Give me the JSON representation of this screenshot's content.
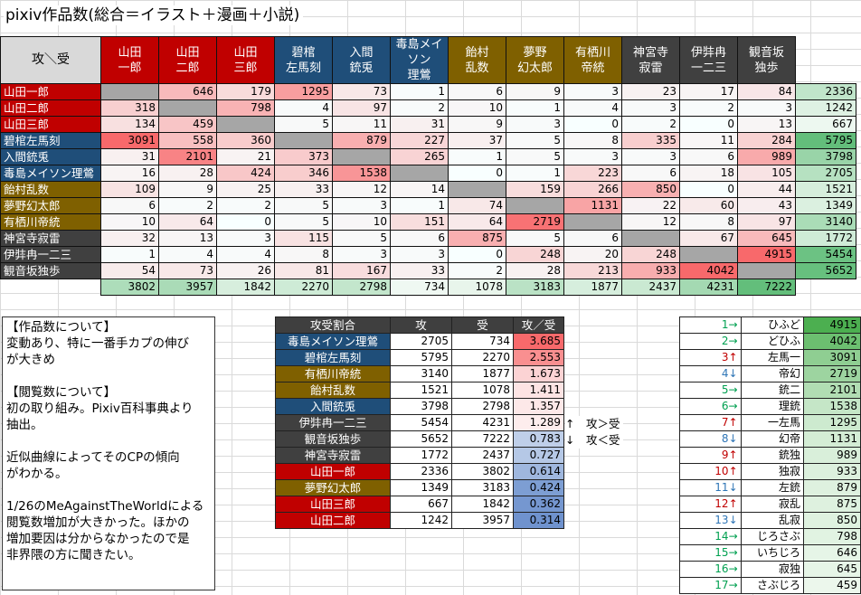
{
  "title": "pixiv作品数(総合＝イラスト＋漫画＋小説)",
  "corner_label": "攻＼受",
  "characters": [
    {
      "name": "山田一郎",
      "header": "山田\n一郎",
      "color": "#c00000"
    },
    {
      "name": "山田二郎",
      "header": "山田\n二郎",
      "color": "#c00000"
    },
    {
      "name": "山田三郎",
      "header": "山田\n三郎",
      "color": "#c00000"
    },
    {
      "name": "碧棺左馬刻",
      "header": "碧棺\n左馬刻",
      "color": "#1f4e79"
    },
    {
      "name": "入間銃兎",
      "header": "入間\n銃兎",
      "color": "#1f4e79"
    },
    {
      "name": "毒島メイソン理鶯",
      "header": "毒島メイ\nソン\n理鶯",
      "color": "#1f4e79"
    },
    {
      "name": "飴村乱数",
      "header": "飴村\n乱数",
      "color": "#7f6000"
    },
    {
      "name": "夢野幻太郎",
      "header": "夢野\n幻太郎",
      "color": "#7f6000"
    },
    {
      "name": "有栖川帝統",
      "header": "有栖川\n帝統",
      "color": "#7f6000"
    },
    {
      "name": "神宮寺寂雷",
      "header": "神宮寺\n寂雷",
      "color": "#404040"
    },
    {
      "name": "伊弉冉一二三",
      "header": "伊弉冉\n一二三",
      "color": "#404040"
    },
    {
      "name": "観音坂独歩",
      "header": "観音坂\n独歩",
      "color": "#404040"
    }
  ],
  "matrix": [
    [
      null,
      646,
      179,
      1295,
      73,
      1,
      6,
      9,
      3,
      23,
      17,
      84
    ],
    [
      318,
      null,
      798,
      4,
      97,
      2,
      10,
      1,
      4,
      3,
      2,
      3
    ],
    [
      134,
      459,
      null,
      5,
      11,
      31,
      9,
      3,
      0,
      2,
      0,
      13
    ],
    [
      3091,
      558,
      360,
      null,
      879,
      227,
      37,
      5,
      8,
      335,
      11,
      284
    ],
    [
      31,
      2101,
      21,
      373,
      null,
      265,
      1,
      5,
      3,
      3,
      6,
      989
    ],
    [
      16,
      28,
      424,
      346,
      1538,
      null,
      0,
      1,
      223,
      6,
      18,
      105
    ],
    [
      109,
      9,
      25,
      33,
      12,
      14,
      null,
      159,
      266,
      850,
      0,
      44
    ],
    [
      6,
      2,
      2,
      5,
      3,
      1,
      74,
      null,
      1131,
      22,
      60,
      43
    ],
    [
      10,
      64,
      0,
      5,
      10,
      151,
      64,
      2719,
      null,
      12,
      8,
      97
    ],
    [
      32,
      13,
      3,
      115,
      5,
      6,
      875,
      5,
      6,
      null,
      67,
      645
    ],
    [
      1,
      4,
      4,
      8,
      3,
      3,
      0,
      248,
      20,
      248,
      null,
      4915
    ],
    [
      54,
      73,
      26,
      81,
      167,
      33,
      2,
      28,
      213,
      933,
      4042,
      null
    ]
  ],
  "row_totals": [
    2336,
    1242,
    667,
    5795,
    3798,
    2705,
    1521,
    1349,
    3140,
    1772,
    5454,
    5652
  ],
  "col_totals": [
    3802,
    3957,
    1842,
    2270,
    2798,
    734,
    1078,
    3183,
    1877,
    2437,
    4231,
    7222
  ],
  "notes": [
    "【作品数について】\n変動あり、特に一番手カプの伸び\nが大きめ",
    "【閲覧数について】\n初の取り組み。Pixiv百科事典より\n抽出。",
    "近似曲線によってそのCPの傾向\nがわかる。",
    "1/26のMeAgainstTheWorldによる\n閲覧数増加が大きかった。ほかの\n増加要因は分からなかったので是\n非界隈の方に聞きたい。"
  ],
  "ratio_table": {
    "headers": [
      "攻受割合",
      "攻",
      "受",
      "攻／受"
    ],
    "rows": [
      {
        "name": "毒島メイソン理鶯",
        "color": "#1f4e79",
        "seme": 2705,
        "uke": 734,
        "ratio": "3.685",
        "shade": "#f8696b"
      },
      {
        "name": "碧棺左馬刻",
        "color": "#1f4e79",
        "seme": 5795,
        "uke": 2270,
        "ratio": "2.553",
        "shade": "#f98f90"
      },
      {
        "name": "有栖川帝統",
        "color": "#7f6000",
        "seme": 3140,
        "uke": 1877,
        "ratio": "1.673",
        "shade": "#fcd3d4"
      },
      {
        "name": "飴村乱数",
        "color": "#7f6000",
        "seme": 1521,
        "uke": 1078,
        "ratio": "1.411",
        "shade": "#fde4e4"
      },
      {
        "name": "入間銃兎",
        "color": "#1f4e79",
        "seme": 3798,
        "uke": 2798,
        "ratio": "1.357",
        "shade": "#fde8e8"
      },
      {
        "name": "伊弉冉一二三",
        "color": "#404040",
        "seme": 5454,
        "uke": 4231,
        "ratio": "1.289",
        "shade": "#fdeded"
      },
      {
        "name": "観音坂独歩",
        "color": "#404040",
        "seme": 5652,
        "uke": 7222,
        "ratio": "0.783",
        "shade": "#bfcfe9"
      },
      {
        "name": "神宮寺寂雷",
        "color": "#404040",
        "seme": 1772,
        "uke": 2437,
        "ratio": "0.727",
        "shade": "#b5c8e6"
      },
      {
        "name": "山田一郎",
        "color": "#c00000",
        "seme": 2336,
        "uke": 3802,
        "ratio": "0.614",
        "shade": "#9fb7de"
      },
      {
        "name": "夢野幻太郎",
        "color": "#7f6000",
        "seme": 1349,
        "uke": 3183,
        "ratio": "0.424",
        "shade": "#7d9ed3"
      },
      {
        "name": "山田三郎",
        "color": "#c00000",
        "seme": 667,
        "uke": 1842,
        "ratio": "0.362",
        "shade": "#7597d0"
      },
      {
        "name": "山田二郎",
        "color": "#c00000",
        "seme": 1242,
        "uke": 3957,
        "ratio": "0.314",
        "shade": "#6f92ce"
      }
    ]
  },
  "arrows": [
    "↑　攻＞受",
    "↓　攻＜受"
  ],
  "views_table": [
    {
      "rank": "1→",
      "trend": "flat",
      "pair": "ひふど",
      "views": 4915,
      "shade": "#4caf50"
    },
    {
      "rank": "2→",
      "trend": "flat",
      "pair": "どひふ",
      "views": 4042,
      "shade": "#6cbf70"
    },
    {
      "rank": "3↑",
      "trend": "up",
      "pair": "左馬一",
      "views": 3091,
      "shade": "#8fce92"
    },
    {
      "rank": "4↓",
      "trend": "down",
      "pair": "帝幻",
      "views": 2719,
      "shade": "#9dd4a0"
    },
    {
      "rank": "5→",
      "trend": "flat",
      "pair": "銃二",
      "views": 2101,
      "shade": "#b1ddb3"
    },
    {
      "rank": "6→",
      "trend": "flat",
      "pair": "理銃",
      "views": 1538,
      "shade": "#c5e6c7"
    },
    {
      "rank": "7↑",
      "trend": "up",
      "pair": "一左馬",
      "views": 1295,
      "shade": "#cdeacf"
    },
    {
      "rank": "8↓",
      "trend": "down",
      "pair": "幻帝",
      "views": 1131,
      "shade": "#d4edd5"
    },
    {
      "rank": "9↑",
      "trend": "up",
      "pair": "銃独",
      "views": 989,
      "shade": "#d9efda"
    },
    {
      "rank": "10↑",
      "trend": "up",
      "pair": "独寂",
      "views": 933,
      "shade": "#dcf0dd"
    },
    {
      "rank": "11↓",
      "trend": "down",
      "pair": "左銃",
      "views": 879,
      "shade": "#def1df"
    },
    {
      "rank": "12↑",
      "trend": "up",
      "pair": "寂乱",
      "views": 875,
      "shade": "#def1df"
    },
    {
      "rank": "13↓",
      "trend": "down",
      "pair": "乱寂",
      "views": 850,
      "shade": "#dff2e0"
    },
    {
      "rank": "14→",
      "trend": "flat",
      "pair": "じろさぶ",
      "views": 798,
      "shade": "#e1f3e2"
    },
    {
      "rank": "15→",
      "trend": "flat",
      "pair": "いちじろ",
      "views": 646,
      "shade": "#e6f5e7"
    },
    {
      "rank": "16→",
      "trend": "flat",
      "pair": "寂独",
      "views": 645,
      "shade": "#e6f5e7"
    },
    {
      "rank": "17→",
      "trend": "flat",
      "pair": "さぶじろ",
      "views": 459,
      "shade": "#ecf7ec"
    }
  ]
}
